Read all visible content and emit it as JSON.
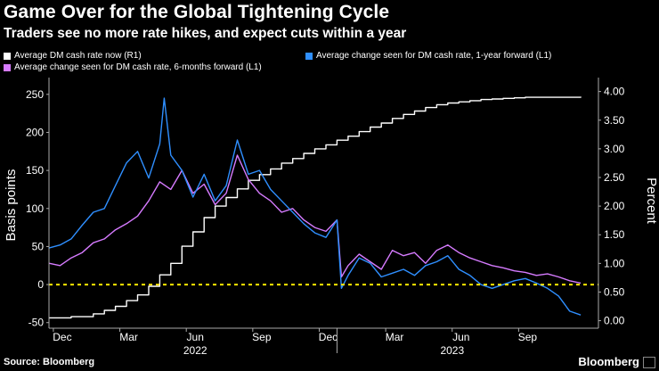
{
  "chart_data": {
    "type": "line",
    "title": "Game Over for the Global Tightening Cycle",
    "subtitle": "Traders see no more rate hikes, and expect cuts within a year",
    "ylabel": "Basis points",
    "ylabel_right": "Percent",
    "ylim": [
      -55,
      265
    ],
    "ylim_right": [
      -0.1,
      4.15
    ],
    "yticks": [
      "250",
      "200",
      "150",
      "100",
      "50",
      "0",
      "-50"
    ],
    "yticks_right": [
      "4.00",
      "3.50",
      "3.00",
      "2.50",
      "2.00",
      "1.50",
      "1.00",
      "0.50",
      "0.00"
    ],
    "x_months": [
      "Dec",
      "Mar",
      "Jun",
      "Sep",
      "Dec",
      "Mar",
      "Jun",
      "Sep"
    ],
    "x_years": [
      "2022",
      "2023"
    ],
    "reference_line": {
      "value": 0,
      "color": "#ffe600"
    },
    "series": [
      {
        "name": "Average DM cash rate now (R1)",
        "color": "#ffffff",
        "axis": "right",
        "x": [
          0,
          1,
          2,
          2.5,
          3,
          3.5,
          4,
          4.5,
          5,
          5.5,
          6,
          6.5,
          7,
          7.5,
          8,
          8.5,
          9,
          9.5,
          10,
          10.5,
          11,
          11.5,
          12,
          12.5,
          13,
          13.5,
          14,
          14.5,
          15,
          15.5,
          16,
          16.5,
          17,
          17.5,
          18,
          18.5,
          19,
          19.5,
          20,
          20.5,
          21,
          21.5,
          22,
          22.5,
          23,
          23.5,
          24
        ],
        "values": [
          0.05,
          0.07,
          0.12,
          0.18,
          0.25,
          0.35,
          0.45,
          0.6,
          0.8,
          1.0,
          1.3,
          1.55,
          1.8,
          2.0,
          2.15,
          2.3,
          2.45,
          2.55,
          2.65,
          2.75,
          2.83,
          2.92,
          3.0,
          3.07,
          3.15,
          3.22,
          3.3,
          3.38,
          3.45,
          3.53,
          3.6,
          3.66,
          3.72,
          3.77,
          3.8,
          3.82,
          3.84,
          3.86,
          3.87,
          3.88,
          3.89,
          3.9,
          3.9,
          3.9,
          3.9,
          3.9,
          3.91
        ]
      },
      {
        "name": "Average change seen for DM cash rate, 6-months forward (L1)",
        "color": "#d67bff",
        "axis": "left",
        "x": [
          0,
          0.5,
          1,
          1.5,
          2,
          2.5,
          3,
          3.5,
          4,
          4.5,
          5,
          5.5,
          6,
          6.5,
          7,
          7.5,
          8,
          8.5,
          9,
          9.5,
          10,
          10.5,
          11,
          11.5,
          12,
          12.5,
          13,
          13.2,
          13.5,
          14,
          14.5,
          15,
          15.5,
          16,
          16.5,
          17,
          17.5,
          18,
          18.5,
          19,
          19.5,
          20,
          20.5,
          21,
          21.5,
          22,
          22.5,
          23,
          23.5,
          24
        ],
        "values": [
          28,
          25,
          35,
          42,
          55,
          60,
          72,
          80,
          90,
          110,
          135,
          125,
          150,
          120,
          132,
          105,
          120,
          170,
          138,
          120,
          110,
          95,
          100,
          85,
          75,
          70,
          85,
          10,
          25,
          40,
          30,
          20,
          45,
          38,
          42,
          28,
          45,
          52,
          42,
          35,
          30,
          25,
          22,
          18,
          16,
          12,
          14,
          10,
          5,
          2
        ]
      },
      {
        "name": "Average change seen for DM cash rate, 1-year forward (L1)",
        "color": "#2f8fff",
        "axis": "left",
        "x": [
          0,
          0.5,
          1,
          1.5,
          2,
          2.5,
          3,
          3.5,
          4,
          4.5,
          5,
          5.2,
          5.5,
          6,
          6.5,
          7,
          7.5,
          8,
          8.5,
          9,
          9.5,
          10,
          10.5,
          11,
          11.5,
          12,
          12.5,
          13,
          13.2,
          13.5,
          14,
          14.5,
          15,
          15.5,
          16,
          16.5,
          17,
          17.5,
          18,
          18.5,
          19,
          19.5,
          20,
          20.5,
          21,
          21.5,
          22,
          22.5,
          23,
          23.5,
          24
        ],
        "values": [
          48,
          52,
          60,
          78,
          95,
          100,
          130,
          160,
          175,
          140,
          185,
          245,
          170,
          150,
          115,
          145,
          110,
          130,
          190,
          145,
          150,
          125,
          110,
          95,
          80,
          68,
          62,
          85,
          -5,
          12,
          35,
          28,
          10,
          15,
          20,
          12,
          25,
          30,
          38,
          20,
          12,
          0,
          -5,
          0,
          5,
          8,
          2,
          -5,
          -15,
          -35,
          -40
        ]
      }
    ]
  },
  "legend": [
    {
      "label": "Average DM cash rate now (R1)",
      "color": "#ffffff"
    },
    {
      "label": "Average change seen for DM cash rate, 1-year forward (L1)",
      "color": "#2f8fff"
    },
    {
      "label": "Average change seen for DM cash rate, 6-months forward (L1)",
      "color": "#d67bff"
    }
  ],
  "footer": {
    "source": "Source: Bloomberg",
    "brand": "Bloomberg"
  }
}
